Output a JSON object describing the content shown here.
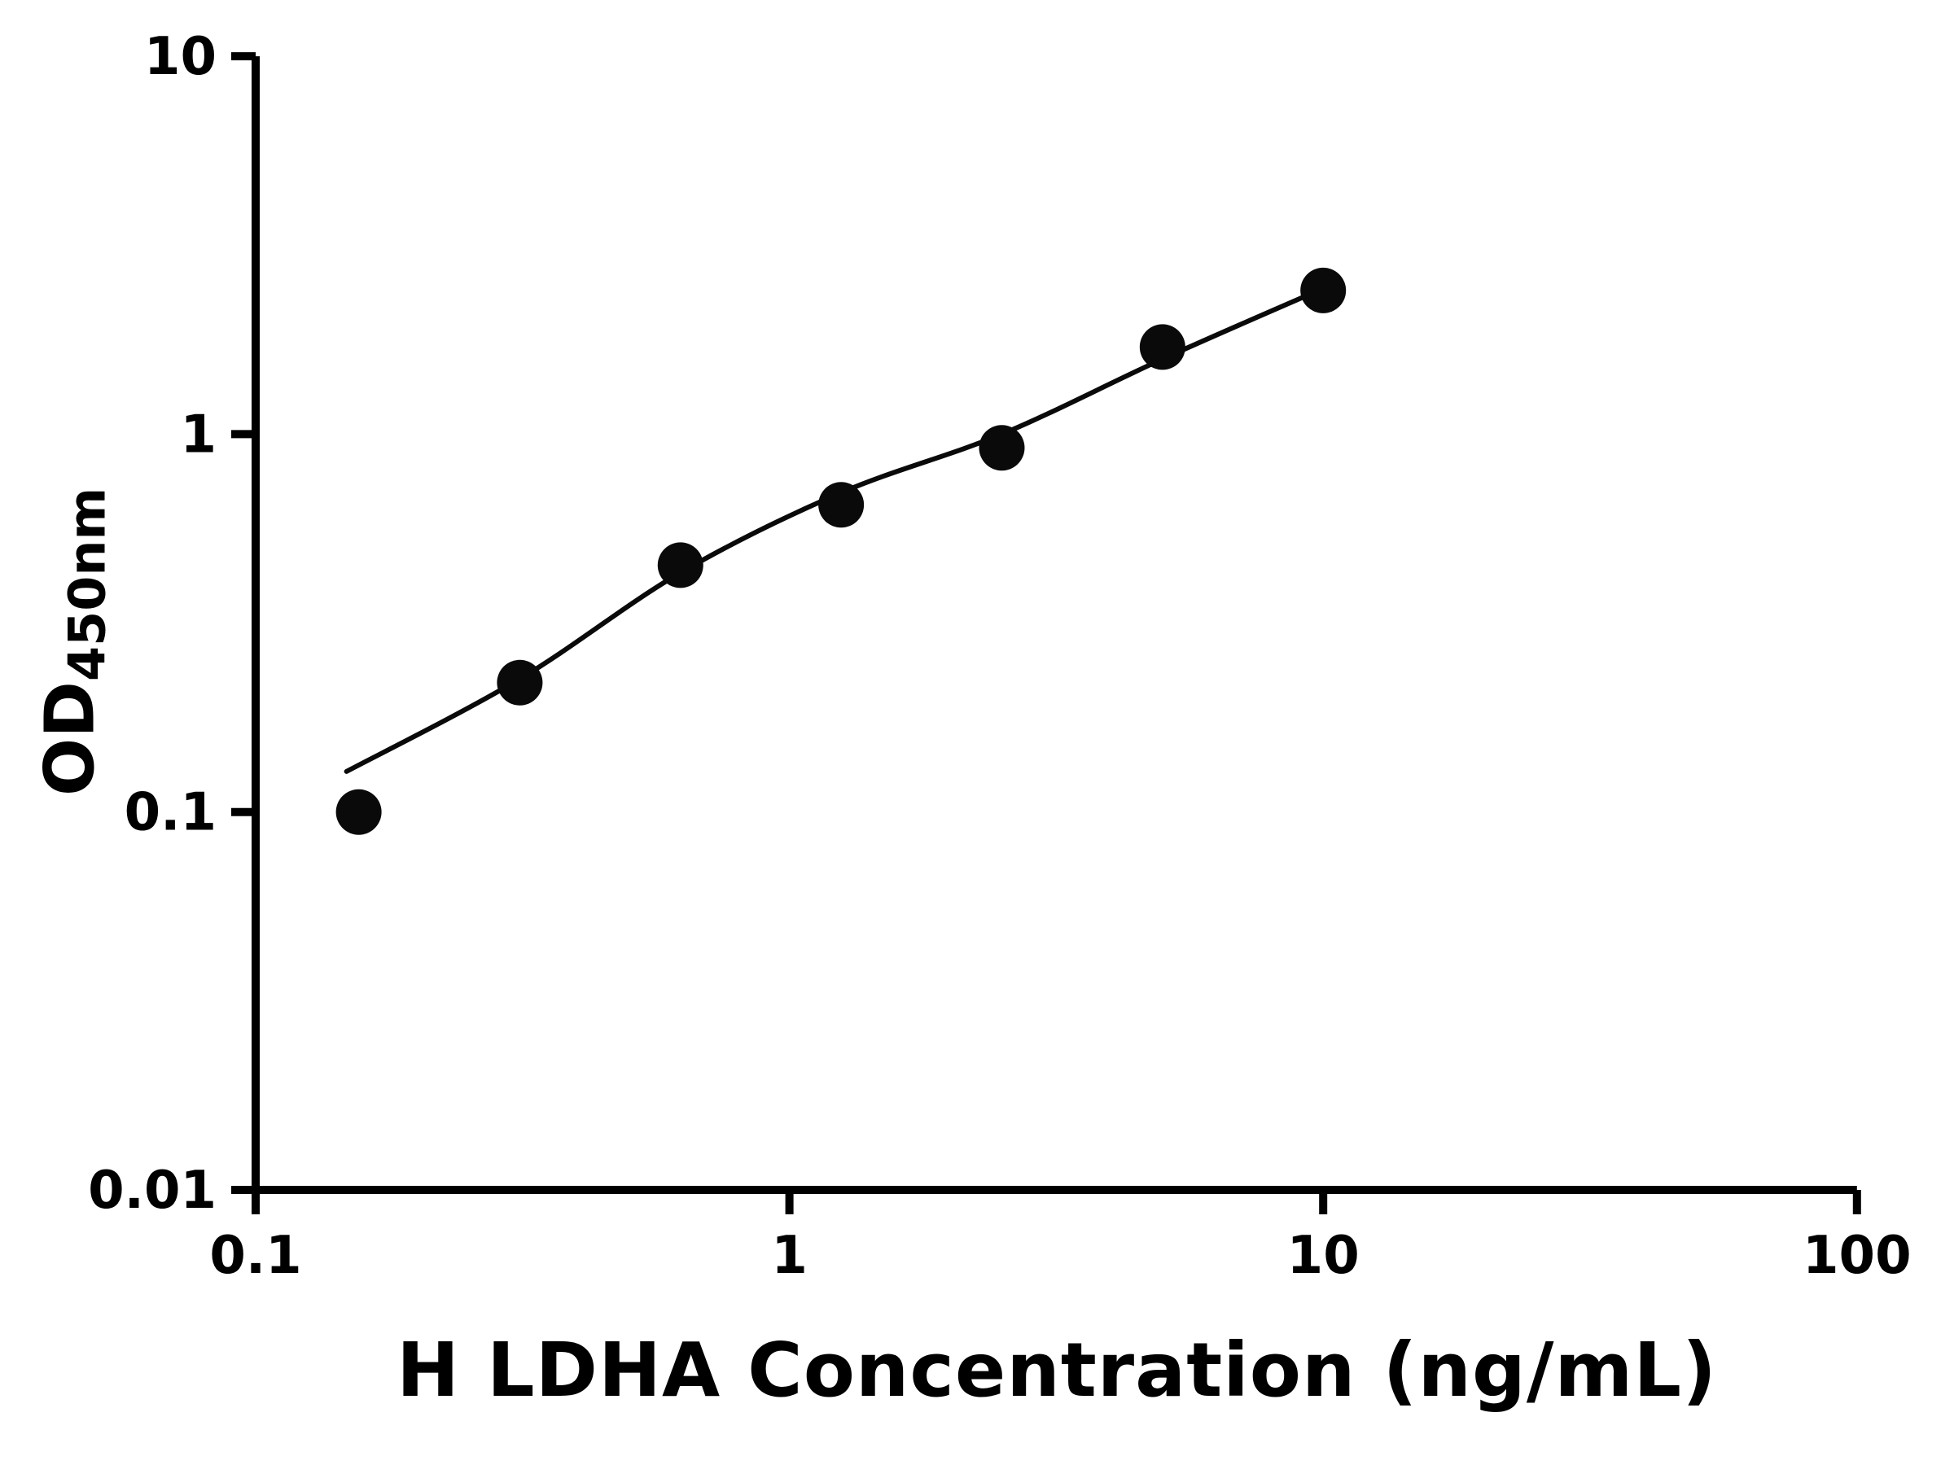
{
  "figure": {
    "background": "#ffffff"
  },
  "chart_data": {
    "type": "scatter",
    "title": "",
    "xlabel": "H LDHA Concentration (ng/mL)",
    "ylabel_main": "OD",
    "ylabel_sub": "450nm",
    "x_scale": "log",
    "y_scale": "log",
    "xlim": [
      0.1,
      100
    ],
    "ylim": [
      0.01,
      10
    ],
    "grid": false,
    "legend": "none",
    "axis_color": "#000000",
    "marker_color": "#0a0a0a",
    "line_color": "#0a0a0a",
    "x_ticks": [
      {
        "value": 0.1,
        "label": "0.1"
      },
      {
        "value": 1,
        "label": "1"
      },
      {
        "value": 10,
        "label": "10"
      },
      {
        "value": 100,
        "label": "100"
      }
    ],
    "y_ticks": [
      {
        "value": 0.01,
        "label": "0.01"
      },
      {
        "value": 0.1,
        "label": "0.1"
      },
      {
        "value": 1,
        "label": "1"
      },
      {
        "value": 10,
        "label": "10"
      }
    ],
    "points": [
      {
        "x": 0.156,
        "y": 0.1
      },
      {
        "x": 0.3125,
        "y": 0.22
      },
      {
        "x": 0.625,
        "y": 0.45
      },
      {
        "x": 1.25,
        "y": 0.65
      },
      {
        "x": 2.5,
        "y": 0.92
      },
      {
        "x": 5,
        "y": 1.7
      },
      {
        "x": 10,
        "y": 2.4
      }
    ],
    "fit_curve": [
      {
        "x": 0.148,
        "y": 0.128
      },
      {
        "x": 0.3125,
        "y": 0.225
      },
      {
        "x": 0.625,
        "y": 0.43
      },
      {
        "x": 1.25,
        "y": 0.7
      },
      {
        "x": 2.5,
        "y": 1.0
      },
      {
        "x": 5,
        "y": 1.58
      },
      {
        "x": 10,
        "y": 2.43
      }
    ]
  }
}
